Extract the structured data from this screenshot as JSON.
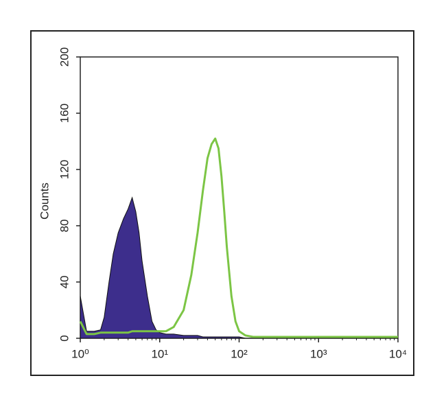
{
  "chart_data": {
    "type": "histogram-overlay",
    "y_label": "Counts",
    "log_x": true,
    "xlim": [
      1,
      10000
    ],
    "ylim": [
      0,
      200
    ],
    "xticks": [
      {
        "value": 1,
        "label": "10⁰"
      },
      {
        "value": 10,
        "label": "10¹"
      },
      {
        "value": 100,
        "label": "10²"
      },
      {
        "value": 1000,
        "label": "10³"
      },
      {
        "value": 10000,
        "label": "10⁴"
      }
    ],
    "yticks": [
      0,
      40,
      80,
      120,
      160,
      200
    ],
    "x": [
      1,
      1.2,
      1.5,
      1.8,
      2,
      2.3,
      2.6,
      3,
      3.5,
      4,
      4.5,
      5,
      5.5,
      6,
      7,
      8,
      9,
      10,
      12,
      15,
      20,
      25,
      30,
      35,
      40,
      45,
      50,
      55,
      60,
      65,
      70,
      80,
      90,
      100,
      120,
      150,
      200,
      300,
      500,
      1000,
      3000,
      10000
    ],
    "series": [
      {
        "color": "#3d2e8c",
        "filled": true,
        "values": [
          30,
          5,
          5,
          6,
          15,
          40,
          60,
          75,
          85,
          92,
          100,
          90,
          75,
          55,
          30,
          12,
          6,
          4,
          3,
          3,
          2,
          2,
          2,
          1,
          1,
          1,
          1,
          1,
          1,
          1,
          1,
          1,
          1,
          1,
          0,
          0,
          0,
          0,
          0,
          0,
          0,
          0
        ]
      },
      {
        "color": "#7cc545",
        "filled": false,
        "values": [
          12,
          3,
          3,
          4,
          4,
          4,
          4,
          4,
          4,
          4,
          5,
          5,
          5,
          5,
          5,
          5,
          5,
          5,
          5,
          8,
          20,
          45,
          75,
          105,
          128,
          138,
          142,
          135,
          115,
          90,
          65,
          30,
          12,
          5,
          2,
          1,
          1,
          1,
          1,
          1,
          1,
          1
        ]
      }
    ]
  }
}
